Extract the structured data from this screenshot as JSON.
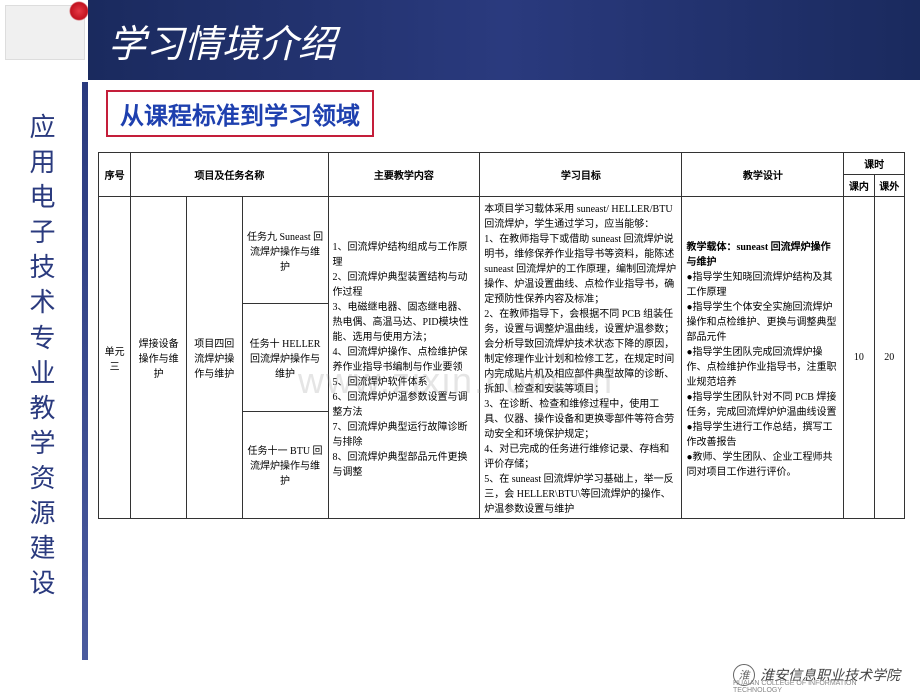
{
  "colors": {
    "header_bg_start": "#1a2a5e",
    "header_bg_end": "#2a3a7e",
    "title_color": "#ffffff",
    "left_text": "#2a3a7e",
    "subtitle_border": "#c41e3a",
    "subtitle_text": "#1e40af",
    "table_border": "#333333",
    "watermark": "rgba(150,150,150,0.25)"
  },
  "header": {
    "title": "学习情境介绍"
  },
  "left_column": {
    "text": "应用电子技术专业教学资源建设"
  },
  "subtitle": {
    "text": "从课程标准到学习领域"
  },
  "watermark": "www.zixin.com.cn",
  "table": {
    "headers": {
      "seq": "序号",
      "proj_task": "项目及任务名称",
      "content": "主要教学内容",
      "goal": "学习目标",
      "design": "教学设计",
      "hours": "课时",
      "hours_in": "课内",
      "hours_out": "课外"
    },
    "row": {
      "seq": "单元三",
      "equip": "焊接设备操作与维护",
      "project": "项目四回流焊炉操作与维护",
      "tasks": [
        "任务九 Suneast 回流焊炉操作与维护",
        "任务十 HELLER 回流焊炉操作与维护",
        "任务十一 BTU 回流焊炉操作与维护"
      ],
      "contents": [
        "1、回流焊炉结构组成与工作原理",
        "2、回流焊炉典型装置结构与动作过程",
        "3、电磁继电器、固态继电器、热电偶、高温马达、PID模块性能、选用与使用方法；",
        "4、回流焊炉操作、点检维护保养作业指导书编制与作业要领",
        "5、回流焊炉软件体系",
        "6、回流焊炉炉温参数设置与调整方法",
        "7、回流焊炉典型运行故障诊断与排除",
        "8、回流焊炉典型部品元件更换与调整"
      ],
      "goal_intro": "本项目学习载体采用 suneast/ HELLER/BTU 回流焊炉，学生通过学习，应当能够：",
      "goals": [
        "1、在教师指导下或借助 suneast 回流焊炉说明书，维修保养作业指导书等资料，能陈述 suneast 回流焊炉的工作原理，编制回流焊炉操作、炉温设置曲线、点检作业指导书，确定预防性保养内容及标准；",
        "2、在教师指导下，会根据不同 PCB 组装任务，设置与调整炉温曲线，设置炉温参数；会分析导致回流焊炉技术状态下降的原因，制定修理作业计划和检修工艺，在规定时间内完成贴片机及相应部件典型故障的诊断、拆卸、检查和安装等项目；",
        "3、在诊断、检查和维修过程中，使用工具、仪器、操作设备和更换零部件等符合劳动安全和环境保护规定；",
        "4、对已完成的任务进行维修记录、存档和评价存储；",
        "5、在 suneast 回流焊炉学习基础上，举一反三，会 HELLER\\BTU\\等回流焊炉的操作、炉温参数设置与维护"
      ],
      "design_intro": "教学载体：suneast 回流焊炉操作与维护",
      "designs": [
        "●指导学生知晓回流焊炉结构及其工作原理",
        "●指导学生个体安全实施回流焊炉操作和点检维护、更换与调整典型部品元件",
        "●指导学生团队完成回流焊炉操作、点检维护作业指导书，注重职业规范培养",
        "●指导学生团队针对不同 PCB 焊接任务，完成回流焊炉炉温曲线设置",
        "●指导学生进行工作总结，撰写工作改善报告",
        "●教师、学生团队、企业工程师共同对项目工作进行评价。"
      ],
      "hours_in": "10",
      "hours_out": "20"
    }
  },
  "footer": {
    "text": "淮安信息职业技术学院",
    "sub": "HUAIAN COLLEGE OF INFORMATION TECHNOLOGY"
  }
}
